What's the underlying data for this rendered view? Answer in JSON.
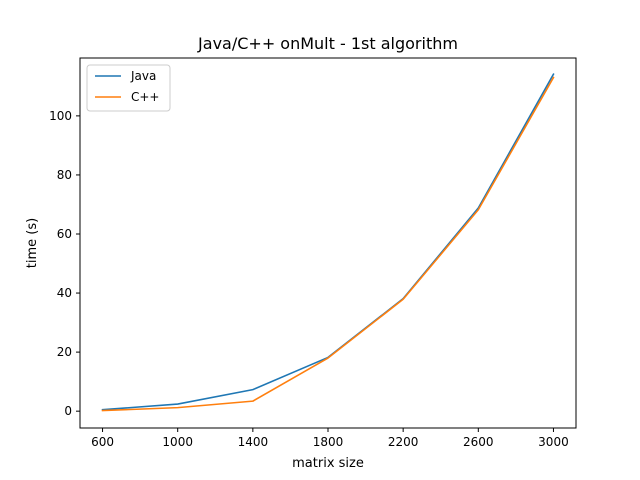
{
  "chart_data": {
    "type": "line",
    "title": "Java/C++ onMult - 1st algorithm",
    "xlabel": "matrix size",
    "ylabel": "time (s)",
    "x": [
      600,
      1000,
      1400,
      1800,
      2200,
      2600,
      3000
    ],
    "xticks": [
      600,
      1000,
      1400,
      1800,
      2200,
      2600,
      3000
    ],
    "yticks": [
      0,
      20,
      40,
      60,
      80,
      100
    ],
    "xlim": [
      480,
      3120
    ],
    "ylim": [
      -5.7,
      119.6
    ],
    "grid": false,
    "legend_position": "top-left",
    "series": [
      {
        "name": "Java",
        "color": "#1f77b4",
        "values": [
          0.5,
          2.4,
          7.3,
          18.2,
          38.1,
          68.8,
          114.1
        ]
      },
      {
        "name": "C++",
        "color": "#ff7f0e",
        "values": [
          0.2,
          1.2,
          3.4,
          18.0,
          37.9,
          68.2,
          113.0
        ]
      }
    ]
  }
}
